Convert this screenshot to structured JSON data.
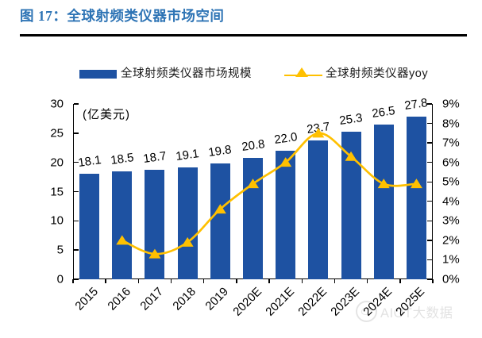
{
  "page": {
    "title": "图 17：全球射频类仪器市场空间",
    "watermark": "AIOT大数据"
  },
  "legend": {
    "items": [
      {
        "label": "全球射频类仪器市场规模",
        "marker": "bar-swatch",
        "color": "#1E52A2"
      },
      {
        "label": "全球射频类仪器yoy",
        "marker": "line-triangle-swatch",
        "color": "#FFC000"
      }
    ]
  },
  "colors": {
    "bar": "#1E52A2",
    "line": "#FFC000",
    "title": "#2E74B5",
    "axis": "#000000"
  },
  "chart_data": {
    "type": "bar+line combo",
    "title": "全球射频类仪器市场空间",
    "categories": [
      "2015",
      "2016",
      "2017",
      "2018",
      "2019",
      "2020E",
      "2021E",
      "2022E",
      "2023E",
      "2024E",
      "2025E"
    ],
    "series": [
      {
        "name": "全球射频类仪器市场规模",
        "type": "bar",
        "axis": "left",
        "unit": "亿美元",
        "color": "#1E52A2",
        "values": [
          18.1,
          18.5,
          18.7,
          19.1,
          19.8,
          20.8,
          22.0,
          23.7,
          25.3,
          26.5,
          27.8
        ],
        "labels": [
          "18.1",
          "18.5",
          "18.7",
          "19.1",
          "19.8",
          "20.8",
          "22.0",
          "23.7",
          "25.3",
          "26.5",
          "27.8"
        ]
      },
      {
        "name": "全球射频类仪器yoy",
        "type": "line",
        "axis": "right",
        "unit": "%",
        "color": "#FFC000",
        "values": [
          null,
          2.0,
          1.3,
          1.9,
          3.6,
          4.9,
          6.0,
          7.5,
          6.3,
          4.9,
          4.9
        ]
      }
    ],
    "left_axis": {
      "label": "(亿美元)",
      "min": 0,
      "max": 30,
      "step": 5,
      "ticks": [
        "0",
        "5",
        "10",
        "15",
        "20",
        "25",
        "30"
      ]
    },
    "right_axis": {
      "min": 0,
      "max": 9,
      "step": 1,
      "ticks": [
        "0%",
        "1%",
        "2%",
        "3%",
        "4%",
        "5%",
        "6%",
        "7%",
        "8%",
        "9%"
      ]
    },
    "legend_position": "top",
    "grid": false,
    "xlabel_rotation_deg": -45
  }
}
